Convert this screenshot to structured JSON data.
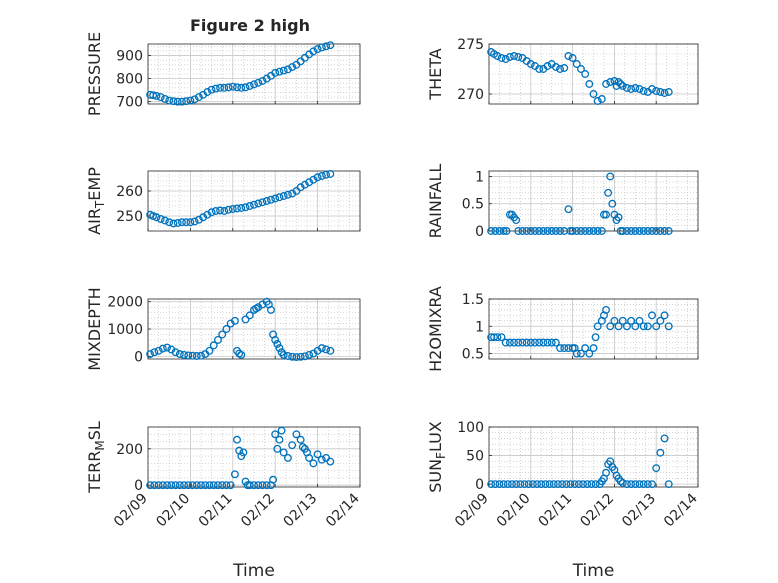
{
  "figure": {
    "title": "Figure 2 high"
  },
  "chart_data": [
    {
      "type": "scatter",
      "ylabel": "PRESSURE",
      "ylim": [
        690,
        950
      ],
      "yticks": [
        700,
        800,
        900
      ],
      "xlim": [
        0,
        5
      ],
      "xticks": [],
      "grid": "on",
      "minor_grid": "on",
      "color": "#0072BD",
      "show_title": true,
      "x": [
        0.05,
        0.12,
        0.2,
        0.3,
        0.4,
        0.5,
        0.6,
        0.7,
        0.8,
        0.9,
        1.0,
        1.1,
        1.2,
        1.3,
        1.4,
        1.5,
        1.6,
        1.7,
        1.8,
        1.9,
        2.0,
        2.1,
        2.2,
        2.3,
        2.4,
        2.5,
        2.6,
        2.7,
        2.8,
        2.9,
        3.0,
        3.1,
        3.2,
        3.3,
        3.4,
        3.5,
        3.6,
        3.7,
        3.8,
        3.9,
        4.0,
        4.1,
        4.2,
        4.3
      ],
      "y": [
        730,
        728,
        725,
        720,
        712,
        705,
        702,
        700,
        700,
        702,
        705,
        710,
        720,
        730,
        742,
        752,
        757,
        760,
        760,
        762,
        765,
        762,
        760,
        762,
        768,
        775,
        782,
        790,
        800,
        812,
        825,
        830,
        835,
        840,
        850,
        860,
        875,
        890,
        905,
        918,
        928,
        935,
        940,
        945
      ]
    },
    {
      "type": "scatter",
      "ylabel": "THETA",
      "ylim": [
        269,
        275
      ],
      "yticks": [
        270,
        275
      ],
      "xlim": [
        0,
        5
      ],
      "xticks": [],
      "grid": "on",
      "minor_grid": "on",
      "color": "#0072BD",
      "x": [
        0.05,
        0.12,
        0.2,
        0.3,
        0.4,
        0.5,
        0.6,
        0.7,
        0.8,
        0.9,
        1.0,
        1.1,
        1.2,
        1.3,
        1.4,
        1.5,
        1.6,
        1.7,
        1.8,
        1.9,
        2.0,
        2.1,
        2.2,
        2.3,
        2.4,
        2.5,
        2.6,
        2.7,
        2.8,
        2.9,
        3.0,
        3.05,
        3.1,
        3.15,
        3.2,
        3.3,
        3.4,
        3.5,
        3.6,
        3.7,
        3.8,
        3.9,
        4.0,
        4.1,
        4.2,
        4.3
      ],
      "y": [
        274.2,
        274.0,
        273.8,
        273.6,
        273.5,
        273.7,
        273.8,
        273.7,
        273.6,
        273.3,
        273.0,
        272.8,
        272.5,
        272.5,
        272.8,
        273.0,
        272.7,
        272.5,
        272.6,
        273.8,
        273.6,
        273.0,
        272.5,
        272.0,
        271.0,
        270.0,
        269.3,
        269.5,
        271.0,
        271.2,
        271.3,
        270.8,
        271.2,
        271.0,
        270.8,
        270.6,
        270.5,
        270.6,
        270.5,
        270.3,
        270.2,
        270.5,
        270.3,
        270.2,
        270.1,
        270.2
      ]
    },
    {
      "type": "scatter",
      "ylabel": "AIR_TEMP",
      "ylim": [
        244,
        268
      ],
      "yticks": [
        250,
        260
      ],
      "xlim": [
        0,
        5
      ],
      "xticks": [],
      "grid": "on",
      "minor_grid": "on",
      "color": "#0072BD",
      "x": [
        0.05,
        0.12,
        0.2,
        0.3,
        0.4,
        0.5,
        0.6,
        0.7,
        0.8,
        0.9,
        1.0,
        1.1,
        1.2,
        1.3,
        1.4,
        1.5,
        1.6,
        1.7,
        1.8,
        1.9,
        2.0,
        2.1,
        2.2,
        2.3,
        2.4,
        2.5,
        2.6,
        2.7,
        2.8,
        2.9,
        3.0,
        3.1,
        3.2,
        3.3,
        3.4,
        3.5,
        3.6,
        3.7,
        3.8,
        3.9,
        4.0,
        4.1,
        4.2,
        4.3
      ],
      "y": [
        250.5,
        250.0,
        249.5,
        248.8,
        248.2,
        247.5,
        247.0,
        247.2,
        247.5,
        247.5,
        247.5,
        247.8,
        248.5,
        249.5,
        250.5,
        251.5,
        252.0,
        252.2,
        252.0,
        252.5,
        252.8,
        253.0,
        253.2,
        253.5,
        254.0,
        254.5,
        255.0,
        255.5,
        256.0,
        256.5,
        257.0,
        257.5,
        258.0,
        258.5,
        259.0,
        260.0,
        261.5,
        262.5,
        263.5,
        264.5,
        265.5,
        266.0,
        266.5,
        266.8
      ]
    },
    {
      "type": "scatter",
      "ylabel": "RAINFALL",
      "ylim": [
        0,
        1.1
      ],
      "yticks": [
        0,
        0.5,
        1
      ],
      "xlim": [
        0,
        5
      ],
      "xticks": [],
      "grid": "on",
      "minor_grid": "on",
      "color": "#0072BD",
      "x": [
        0.05,
        0.15,
        0.25,
        0.35,
        0.42,
        0.5,
        0.55,
        0.6,
        0.65,
        0.7,
        0.8,
        0.9,
        1.0,
        1.1,
        1.2,
        1.3,
        1.4,
        1.5,
        1.6,
        1.7,
        1.8,
        1.9,
        1.95,
        2.0,
        2.1,
        2.2,
        2.3,
        2.4,
        2.5,
        2.6,
        2.7,
        2.75,
        2.8,
        2.85,
        2.9,
        2.95,
        3.0,
        3.05,
        3.1,
        3.15,
        3.2,
        3.3,
        3.4,
        3.5,
        3.6,
        3.7,
        3.8,
        3.9,
        4.0,
        4.1,
        4.2,
        4.3
      ],
      "y": [
        0,
        0,
        0,
        0,
        0,
        0.3,
        0.3,
        0.25,
        0.2,
        0,
        0,
        0,
        0,
        0,
        0,
        0,
        0,
        0,
        0,
        0,
        0,
        0.4,
        0,
        0,
        0,
        0,
        0,
        0,
        0,
        0,
        0,
        0.3,
        0.3,
        0.7,
        1.0,
        0.5,
        0.3,
        0.2,
        0.25,
        0,
        0,
        0,
        0,
        0,
        0,
        0,
        0,
        0,
        0,
        0,
        0,
        0
      ]
    },
    {
      "type": "scatter",
      "ylabel": "MIXDEPTH",
      "ylim": [
        -100,
        2100
      ],
      "yticks": [
        0,
        1000,
        2000
      ],
      "xlim": [
        0,
        5
      ],
      "xticks": [],
      "grid": "on",
      "minor_grid": "on",
      "color": "#0072BD",
      "x": [
        0.05,
        0.15,
        0.25,
        0.35,
        0.45,
        0.55,
        0.65,
        0.75,
        0.85,
        0.95,
        1.05,
        1.15,
        1.25,
        1.35,
        1.45,
        1.55,
        1.65,
        1.75,
        1.85,
        1.95,
        2.05,
        2.1,
        2.15,
        2.2,
        2.3,
        2.4,
        2.5,
        2.55,
        2.6,
        2.7,
        2.8,
        2.85,
        2.9,
        2.95,
        3.0,
        3.05,
        3.1,
        3.15,
        3.2,
        3.3,
        3.4,
        3.5,
        3.6,
        3.7,
        3.8,
        3.9,
        4.0,
        4.1,
        4.2,
        4.3
      ],
      "y": [
        80,
        150,
        200,
        280,
        320,
        250,
        150,
        80,
        50,
        30,
        20,
        10,
        20,
        80,
        200,
        400,
        600,
        800,
        1000,
        1200,
        1300,
        200,
        100,
        50,
        1350,
        1500,
        1700,
        1750,
        1800,
        1900,
        2000,
        1900,
        1700,
        800,
        600,
        450,
        300,
        150,
        50,
        10,
        -20,
        -30,
        -20,
        0,
        50,
        100,
        200,
        300,
        250,
        200
      ]
    },
    {
      "type": "scatter",
      "ylabel": "H2OMIXRA",
      "ylim": [
        0.4,
        1.5
      ],
      "yticks": [
        0.5,
        1,
        1.5
      ],
      "xlim": [
        0,
        5
      ],
      "xticks": [],
      "grid": "on",
      "minor_grid": "on",
      "color": "#0072BD",
      "x": [
        0.05,
        0.12,
        0.2,
        0.3,
        0.4,
        0.5,
        0.6,
        0.7,
        0.8,
        0.9,
        1.0,
        1.1,
        1.2,
        1.3,
        1.4,
        1.5,
        1.6,
        1.7,
        1.8,
        1.9,
        2.0,
        2.05,
        2.1,
        2.2,
        2.3,
        2.4,
        2.5,
        2.55,
        2.6,
        2.7,
        2.75,
        2.8,
        2.9,
        3.0,
        3.1,
        3.2,
        3.3,
        3.4,
        3.5,
        3.6,
        3.7,
        3.8,
        3.9,
        4.0,
        4.1,
        4.2,
        4.3
      ],
      "y": [
        0.8,
        0.8,
        0.8,
        0.8,
        0.7,
        0.7,
        0.7,
        0.7,
        0.7,
        0.7,
        0.7,
        0.7,
        0.7,
        0.7,
        0.7,
        0.7,
        0.7,
        0.6,
        0.6,
        0.6,
        0.6,
        0.6,
        0.5,
        0.5,
        0.6,
        0.5,
        0.6,
        0.8,
        1.0,
        1.1,
        1.2,
        1.3,
        1.0,
        1.1,
        1.0,
        1.1,
        1.0,
        1.1,
        1.0,
        1.1,
        1.0,
        1.0,
        1.2,
        1.0,
        1.1,
        1.2,
        1.0
      ]
    },
    {
      "type": "scatter",
      "ylabel": "TERR_MSL",
      "ylim": [
        -10,
        320
      ],
      "yticks": [
        0,
        200
      ],
      "xlim": [
        0,
        5
      ],
      "xticks": [
        "02/09",
        "02/10",
        "02/11",
        "02/12",
        "02/13",
        "02/14"
      ],
      "xlabel": "Time",
      "grid": "on",
      "minor_grid": "on",
      "color": "#0072BD",
      "x": [
        0.05,
        0.15,
        0.25,
        0.35,
        0.45,
        0.55,
        0.65,
        0.75,
        0.85,
        0.95,
        1.05,
        1.15,
        1.25,
        1.35,
        1.45,
        1.55,
        1.65,
        1.75,
        1.85,
        1.95,
        2.05,
        2.1,
        2.15,
        2.2,
        2.25,
        2.3,
        2.35,
        2.4,
        2.5,
        2.6,
        2.7,
        2.8,
        2.9,
        2.95,
        3.0,
        3.05,
        3.1,
        3.15,
        3.2,
        3.3,
        3.4,
        3.5,
        3.6,
        3.65,
        3.7,
        3.75,
        3.8,
        3.9,
        4.0,
        4.1,
        4.2,
        4.3
      ],
      "y": [
        0,
        0,
        0,
        0,
        0,
        0,
        0,
        0,
        0,
        0,
        0,
        0,
        0,
        0,
        0,
        0,
        0,
        0,
        0,
        0,
        60,
        250,
        190,
        160,
        180,
        20,
        0,
        0,
        0,
        0,
        0,
        0,
        0,
        30,
        280,
        200,
        250,
        300,
        180,
        150,
        220,
        280,
        250,
        210,
        200,
        180,
        150,
        120,
        170,
        140,
        150,
        130
      ]
    },
    {
      "type": "scatter",
      "ylabel": "SUN_FLUX",
      "ylim": [
        -5,
        100
      ],
      "yticks": [
        0,
        50,
        100
      ],
      "xlim": [
        0,
        5
      ],
      "xticks": [
        "02/09",
        "02/10",
        "02/11",
        "02/12",
        "02/13",
        "02/14"
      ],
      "xlabel": "Time",
      "grid": "on",
      "minor_grid": "on",
      "color": "#0072BD",
      "x": [
        0.05,
        0.15,
        0.25,
        0.35,
        0.45,
        0.55,
        0.65,
        0.75,
        0.85,
        0.95,
        1.05,
        1.15,
        1.25,
        1.35,
        1.45,
        1.55,
        1.65,
        1.75,
        1.85,
        1.95,
        2.05,
        2.15,
        2.25,
        2.35,
        2.45,
        2.55,
        2.65,
        2.7,
        2.75,
        2.8,
        2.85,
        2.9,
        2.95,
        3.0,
        3.05,
        3.1,
        3.15,
        3.2,
        3.3,
        3.4,
        3.5,
        3.6,
        3.7,
        3.8,
        3.9,
        4.0,
        4.1,
        4.2,
        4.3
      ],
      "y": [
        0,
        0,
        0,
        0,
        0,
        0,
        0,
        0,
        0,
        0,
        0,
        0,
        0,
        0,
        0,
        0,
        0,
        0,
        0,
        0,
        0,
        0,
        0,
        0,
        0,
        0,
        0,
        5,
        10,
        20,
        35,
        40,
        30,
        25,
        15,
        10,
        5,
        2,
        0,
        0,
        0,
        0,
        0,
        0,
        0,
        28,
        55,
        80,
        0
      ]
    }
  ]
}
